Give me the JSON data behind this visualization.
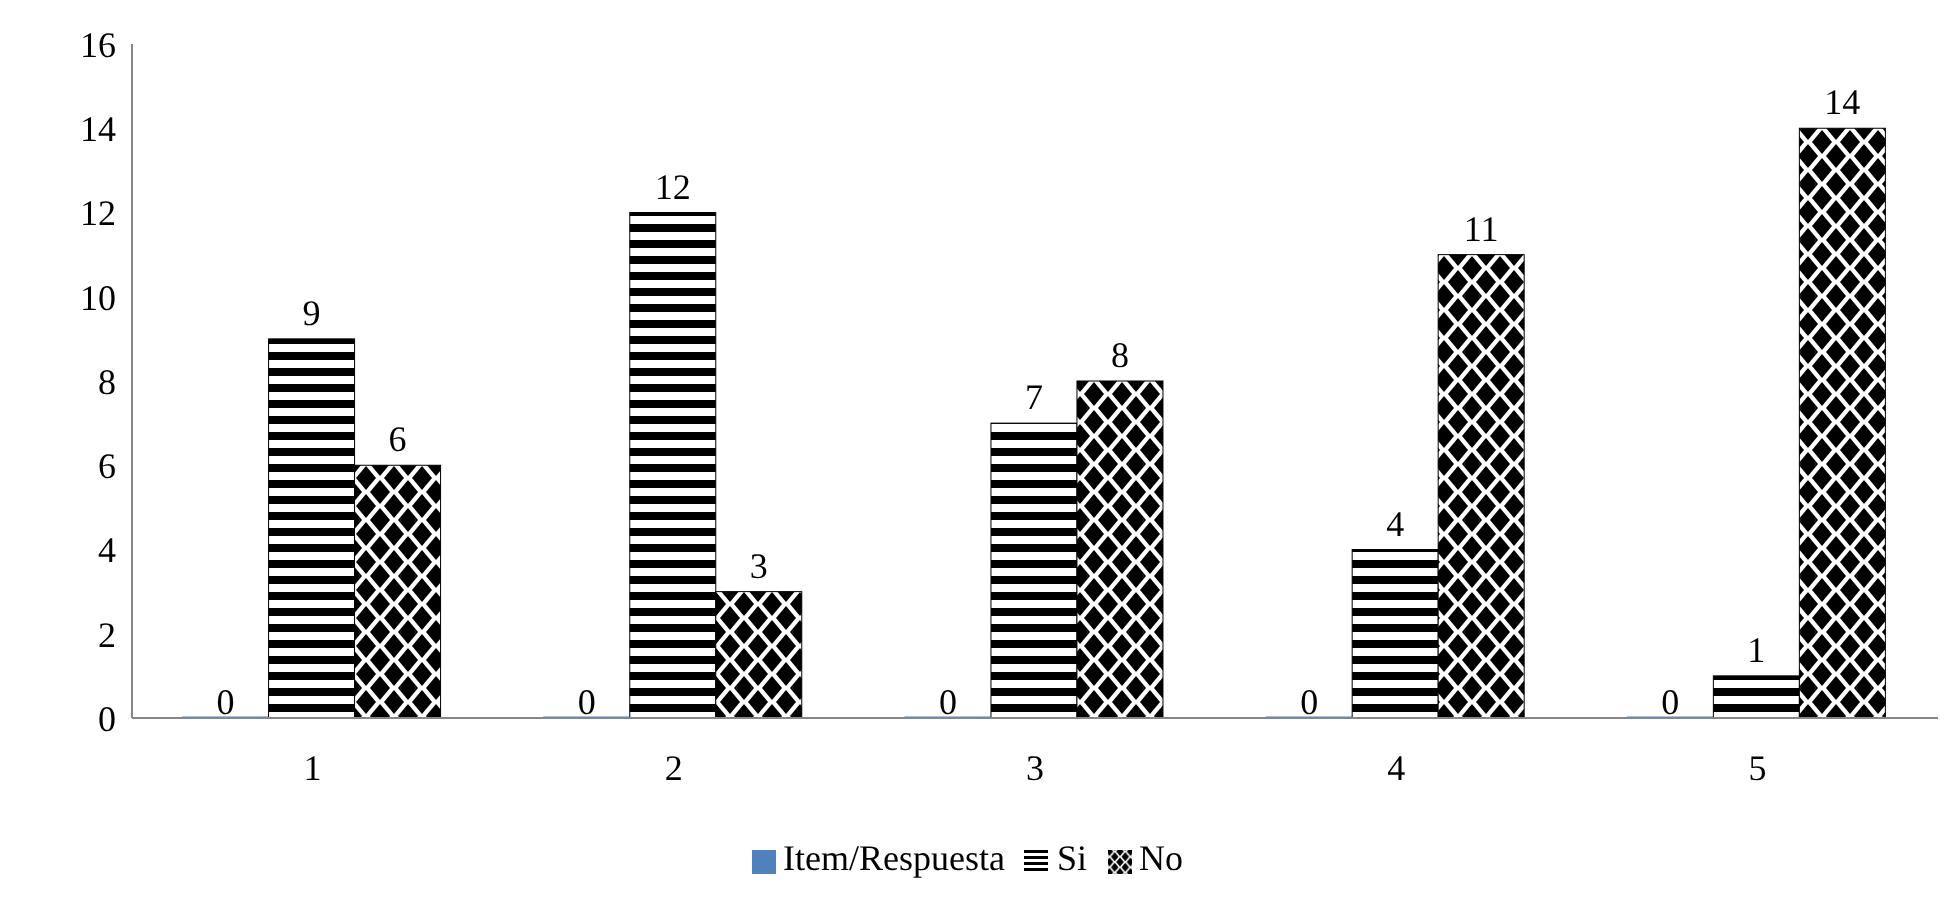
{
  "chart_data": {
    "type": "bar",
    "categories": [
      "1",
      "2",
      "3",
      "4",
      "5"
    ],
    "series": [
      {
        "name": "Item/Respuesta",
        "color": "#4f81bd",
        "values": [
          0,
          0,
          0,
          0,
          0
        ]
      },
      {
        "name": "Si",
        "color": "#000000",
        "values": [
          9,
          12,
          7,
          4,
          1
        ]
      },
      {
        "name": "No",
        "color": "#000000",
        "values": [
          6,
          3,
          8,
          11,
          14
        ]
      }
    ],
    "ylim": [
      0,
      16
    ],
    "yticks": [
      0,
      2,
      4,
      6,
      8,
      10,
      12,
      14,
      16
    ],
    "grid": false,
    "legend": "bottom",
    "data_labels": true
  }
}
